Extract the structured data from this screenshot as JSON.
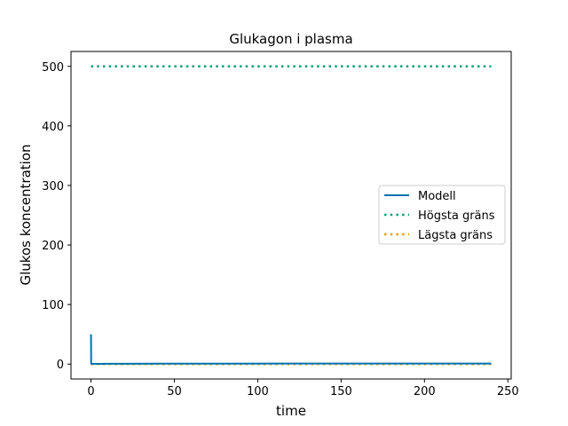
{
  "chart_data": {
    "type": "line",
    "title": "Glukagon i plasma",
    "xlabel": "time",
    "ylabel": "Glukos koncentration",
    "xlim": [
      -12,
      252
    ],
    "ylim": [
      -25,
      525
    ],
    "xticks": [
      0,
      50,
      100,
      150,
      200,
      250
    ],
    "yticks": [
      0,
      100,
      200,
      300,
      400,
      500
    ],
    "xtick_labels": [
      "0",
      "50",
      "100",
      "150",
      "200",
      "250"
    ],
    "ytick_labels": [
      "0",
      "100",
      "200",
      "300",
      "400",
      "500"
    ],
    "legend_position": "center-right",
    "series": [
      {
        "name": "Modell",
        "style": "solid",
        "color": "#0072B2",
        "x": [
          0,
          0.1,
          5,
          10,
          20,
          40,
          80,
          120,
          160,
          200,
          240
        ],
        "y": [
          50,
          0.5,
          0.4,
          0.5,
          0.6,
          0.7,
          0.8,
          0.9,
          0.9,
          0.9,
          0.9
        ]
      },
      {
        "name": "Högsta gräns",
        "style": "dotted",
        "color": "#009E73",
        "x": [
          0,
          240
        ],
        "y": [
          500,
          500
        ]
      },
      {
        "name": "Lägsta gräns",
        "style": "dotted",
        "color": "#E69F00",
        "x": [
          0,
          240
        ],
        "y": [
          0,
          0
        ]
      }
    ]
  }
}
